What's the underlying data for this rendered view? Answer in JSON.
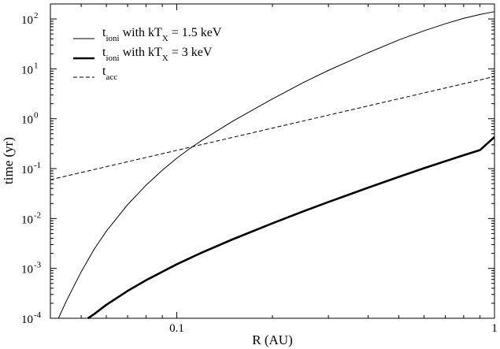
{
  "chart_data": {
    "type": "line",
    "xlabel": "R (AU)",
    "ylabel": "time (yr)",
    "xscale": "log",
    "yscale": "log",
    "xlim": [
      0.04,
      1
    ],
    "ylim": [
      0.0001,
      200
    ],
    "x_ticks": [
      {
        "value": 0.1,
        "label": "0.1"
      },
      {
        "value": 1,
        "label": "1"
      }
    ],
    "y_ticks": [
      {
        "value": 0.0001,
        "base": "10",
        "exp": "-4"
      },
      {
        "value": 0.001,
        "base": "10",
        "exp": "-3"
      },
      {
        "value": 0.01,
        "base": "10",
        "exp": "-2"
      },
      {
        "value": 0.1,
        "base": "10",
        "exp": "-1"
      },
      {
        "value": 1,
        "base": "10",
        "exp": "0"
      },
      {
        "value": 10,
        "base": "10",
        "exp": "1"
      },
      {
        "value": 100,
        "base": "10",
        "exp": "2"
      }
    ],
    "legend_position": "top-left",
    "series": [
      {
        "key": "ioni_15",
        "legend": {
          "t": "t",
          "sub": "ioni",
          "text1": " with  kT",
          "sub2": "X",
          "text2": " = 1.5 keV"
        },
        "style": "thin-solid",
        "x": [
          0.0424,
          0.045,
          0.05,
          0.055,
          0.06,
          0.07,
          0.08,
          0.09,
          0.1,
          0.11,
          0.12,
          0.15,
          0.2,
          0.25,
          0.3,
          0.4,
          0.5,
          0.6,
          0.7,
          0.8,
          0.9,
          1.0
        ],
        "y": [
          0.0001,
          0.000228,
          0.000852,
          0.00245,
          0.00557,
          0.0189,
          0.0465,
          0.0927,
          0.162,
          0.254,
          0.37,
          0.892,
          2.5,
          5.3,
          9.3,
          21,
          38,
          58,
          80,
          103,
          123,
          140
        ]
      },
      {
        "key": "ioni_3",
        "legend": {
          "t": "t",
          "sub": "ioni",
          "text1": " with kT",
          "sub2": "X",
          "text2": " = 3 keV"
        },
        "style": "thick-solid",
        "x": [
          0.0525,
          0.055,
          0.06,
          0.07,
          0.08,
          0.1,
          0.12,
          0.15,
          0.2,
          0.25,
          0.3,
          0.4,
          0.5,
          0.6,
          0.7,
          0.8,
          0.9,
          1.0
        ],
        "y": [
          0.0001,
          0.000122,
          0.000186,
          0.000353,
          0.000579,
          0.00121,
          0.00208,
          0.00383,
          0.00802,
          0.0139,
          0.0214,
          0.0414,
          0.0683,
          0.102,
          0.141,
          0.186,
          0.235,
          0.43
        ]
      },
      {
        "key": "acc",
        "legend": {
          "t": "t",
          "sub": "acc",
          "text1": "",
          "sub2": "",
          "text2": ""
        },
        "style": "dashed",
        "x": [
          0.04,
          1.0
        ],
        "y": [
          0.06,
          7.0
        ]
      }
    ]
  }
}
